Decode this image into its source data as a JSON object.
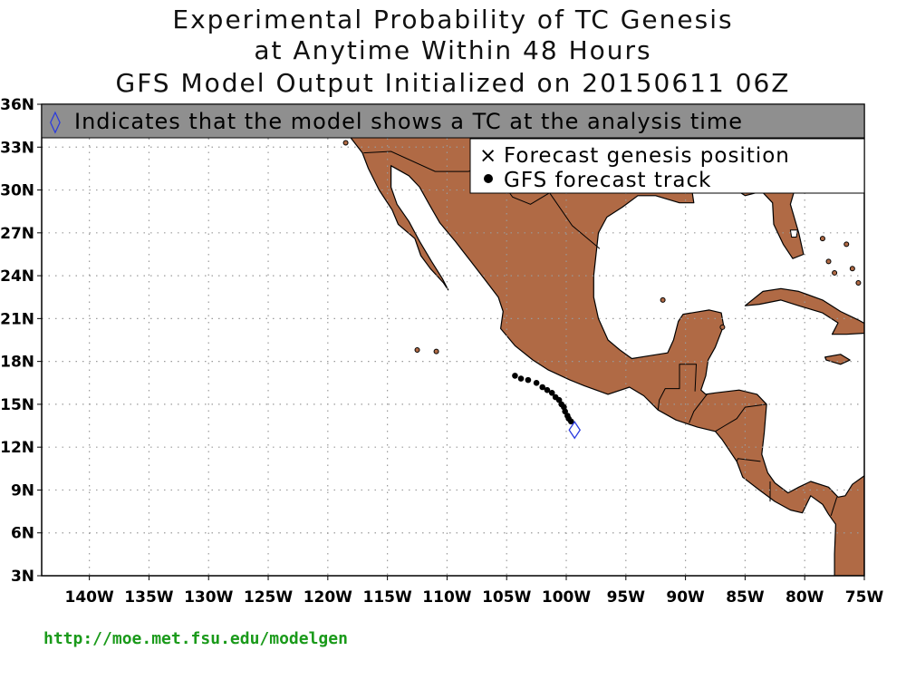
{
  "title": {
    "line1": "Experimental Probability of TC Genesis",
    "line2": "at Anytime Within 48 Hours",
    "line3": "GFS Model Output Initialized on 20150611 06Z"
  },
  "banner": {
    "symbol": "◊",
    "text": "Indicates that the model shows a TC at the analysis time"
  },
  "legend": {
    "genesis_symbol": "×",
    "genesis_label": "Forecast genesis position",
    "track_label": "GFS forecast track"
  },
  "axes": {
    "lat_ticks": [
      "36N",
      "33N",
      "30N",
      "27N",
      "24N",
      "21N",
      "18N",
      "15N",
      "12N",
      "9N",
      "6N",
      "3N"
    ],
    "lon_ticks": [
      "140W",
      "135W",
      "130W",
      "125W",
      "120W",
      "115W",
      "110W",
      "105W",
      "100W",
      "95W",
      "90W",
      "85W",
      "80W",
      "75W"
    ]
  },
  "map": {
    "extent": {
      "lon_min": -144,
      "lon_max": -75,
      "lat_min": 3,
      "lat_max": 36
    },
    "land_color": "#b06a45",
    "ocean_color": "#ffffff",
    "grid": "dotted",
    "track_color": "#000000",
    "diamond_color": "#2a3adf",
    "track_points": [
      {
        "lon": -104.3,
        "lat": 17.0
      },
      {
        "lon": -103.8,
        "lat": 16.8
      },
      {
        "lon": -103.2,
        "lat": 16.7
      },
      {
        "lon": -102.5,
        "lat": 16.5
      },
      {
        "lon": -102.0,
        "lat": 16.2
      },
      {
        "lon": -101.6,
        "lat": 16.0
      },
      {
        "lon": -101.2,
        "lat": 15.8
      },
      {
        "lon": -100.9,
        "lat": 15.5
      },
      {
        "lon": -100.6,
        "lat": 15.3
      },
      {
        "lon": -100.4,
        "lat": 15.0
      },
      {
        "lon": -100.2,
        "lat": 14.8
      },
      {
        "lon": -100.1,
        "lat": 14.5
      },
      {
        "lon": -99.9,
        "lat": 14.2
      },
      {
        "lon": -99.8,
        "lat": 14.0
      },
      {
        "lon": -99.6,
        "lat": 13.8
      }
    ],
    "analysis_position": {
      "lon": -99.3,
      "lat": 13.2
    }
  },
  "footer": {
    "url": "http://moe.met.fsu.edu/modelgen"
  }
}
